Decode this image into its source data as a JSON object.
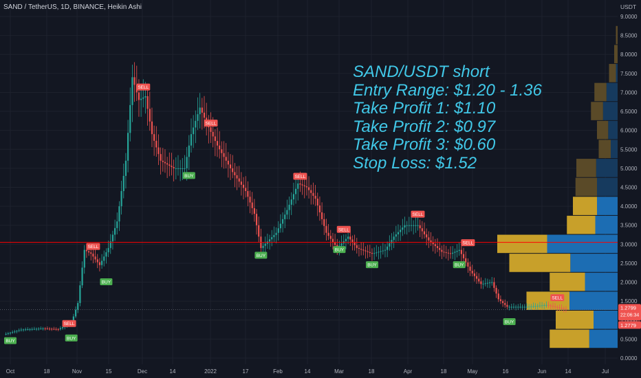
{
  "header": {
    "title": "SAND / TetherUS, 1D, BINANCE, Heikin Ashi"
  },
  "annotation": {
    "lines": [
      "SAND/USDT short",
      "Entry Range: $1.20 - 1.36",
      "Take Profit 1: $1.10",
      "Take Profit 2: $0.97",
      "Take Profit 3: $0.60",
      "Stop Loss: $1.52"
    ],
    "color": "#41c8e8"
  },
  "colors": {
    "background": "#131722",
    "grid": "#1e222d",
    "up": "#26a69a",
    "down": "#ef5350",
    "text": "#b2b5be",
    "level_line": "#ff0000",
    "price_line": "#787b86",
    "vp_blue": "#1c6db3",
    "vp_blue_dark": "#163a5e",
    "vp_gold": "#c8a02a",
    "vp_gold_dark": "#5a4a28",
    "buy_label": "#4caf50",
    "sell_label": "#ef5350"
  },
  "chart_data": {
    "type": "candlestick",
    "title": "SAND / TetherUS, 1D, BINANCE, Heikin Ashi",
    "currency_label": "USDT",
    "y_ticks": [
      "9.0000",
      "8.5000",
      "8.0000",
      "7.5000",
      "7.0000",
      "6.5000",
      "6.0000",
      "5.5000",
      "5.0000",
      "4.5000",
      "4.0000",
      "3.5000",
      "3.0000",
      "2.5000",
      "2.0000",
      "1.5000",
      "1.0000",
      "0.5000",
      "0.0000"
    ],
    "x_ticks": [
      "Oct",
      "18",
      "Nov",
      "15",
      "Dec",
      "14",
      "2022",
      "17",
      "Feb",
      "14",
      "Mar",
      "18",
      "Apr",
      "18",
      "May",
      "16",
      "Jun",
      "14",
      "Jul"
    ],
    "ylim": [
      0,
      9.3
    ],
    "grid": true,
    "horizontal_level": 3.05,
    "current_price": {
      "value": 1.2799,
      "label": "1.2799",
      "countdown": "22:06:34",
      "low_label": "1.2779"
    },
    "price_path": [
      [
        "2021-09-27",
        0.62
      ],
      [
        "2021-10-05",
        0.75
      ],
      [
        "2021-10-15",
        0.78
      ],
      [
        "2021-10-22",
        0.76
      ],
      [
        "2021-10-28",
        0.92
      ],
      [
        "2021-10-31",
        1.45
      ],
      [
        "2021-11-03",
        2.85
      ],
      [
        "2021-11-06",
        2.75
      ],
      [
        "2021-11-10",
        2.45
      ],
      [
        "2021-11-14",
        2.9
      ],
      [
        "2021-11-18",
        3.6
      ],
      [
        "2021-11-22",
        5.2
      ],
      [
        "2021-11-25",
        7.4
      ],
      [
        "2021-11-28",
        6.8
      ],
      [
        "2021-12-01",
        6.9
      ],
      [
        "2021-12-04",
        5.9
      ],
      [
        "2021-12-08",
        5.2
      ],
      [
        "2021-12-14",
        5.0
      ],
      [
        "2021-12-19",
        5.0
      ],
      [
        "2021-12-22",
        5.9
      ],
      [
        "2021-12-26",
        6.6
      ],
      [
        "2021-12-29",
        6.2
      ],
      [
        "2022-01-03",
        5.6
      ],
      [
        "2022-01-10",
        4.9
      ],
      [
        "2022-01-16",
        4.4
      ],
      [
        "2022-01-20",
        3.8
      ],
      [
        "2022-01-23",
        2.9
      ],
      [
        "2022-01-30",
        3.3
      ],
      [
        "2022-02-04",
        3.9
      ],
      [
        "2022-02-09",
        4.6
      ],
      [
        "2022-02-13",
        4.5
      ],
      [
        "2022-02-17",
        4.2
      ],
      [
        "2022-02-22",
        3.3
      ],
      [
        "2022-02-27",
        2.9
      ],
      [
        "2022-03-04",
        3.2
      ],
      [
        "2022-03-08",
        2.9
      ],
      [
        "2022-03-15",
        2.75
      ],
      [
        "2022-03-21",
        2.85
      ],
      [
        "2022-03-25",
        3.2
      ],
      [
        "2022-03-30",
        3.5
      ],
      [
        "2022-04-05",
        3.5
      ],
      [
        "2022-04-10",
        3.1
      ],
      [
        "2022-04-16",
        2.8
      ],
      [
        "2022-04-20",
        2.75
      ],
      [
        "2022-04-24",
        2.85
      ],
      [
        "2022-04-29",
        2.3
      ],
      [
        "2022-05-04",
        1.95
      ],
      [
        "2022-05-09",
        2.0
      ],
      [
        "2022-05-12",
        1.55
      ],
      [
        "2022-05-16",
        1.35
      ],
      [
        "2022-05-25",
        1.35
      ],
      [
        "2022-06-03",
        1.4
      ],
      [
        "2022-06-12",
        1.28
      ]
    ],
    "signals": [
      {
        "date": "2021-09-30",
        "type": "BUY",
        "price": 0.55
      },
      {
        "date": "2021-10-27",
        "type": "SELL",
        "price": 0.82
      },
      {
        "date": "2021-10-28",
        "type": "BUY",
        "price": 0.62
      },
      {
        "date": "2021-11-07",
        "type": "SELL",
        "price": 2.85
      },
      {
        "date": "2021-11-13",
        "type": "BUY",
        "price": 2.1
      },
      {
        "date": "2021-11-30",
        "type": "SELL",
        "price": 7.05
      },
      {
        "date": "2021-12-21",
        "type": "BUY",
        "price": 4.9
      },
      {
        "date": "2021-12-31",
        "type": "SELL",
        "price": 6.1
      },
      {
        "date": "2022-01-23",
        "type": "BUY",
        "price": 2.8
      },
      {
        "date": "2022-02-10",
        "type": "SELL",
        "price": 4.7
      },
      {
        "date": "2022-02-28",
        "type": "BUY",
        "price": 2.95
      },
      {
        "date": "2022-03-02",
        "type": "SELL",
        "price": 3.3
      },
      {
        "date": "2022-03-15",
        "type": "BUY",
        "price": 2.55
      },
      {
        "date": "2022-04-05",
        "type": "SELL",
        "price": 3.7
      },
      {
        "date": "2022-04-24",
        "type": "BUY",
        "price": 2.55
      },
      {
        "date": "2022-04-28",
        "type": "SELL",
        "price": 2.95
      },
      {
        "date": "2022-05-17",
        "type": "BUY",
        "price": 1.05
      },
      {
        "date": "2022-06-08",
        "type": "SELL",
        "price": 1.5
      }
    ],
    "volume_profile": [
      {
        "price": 8.5,
        "up": 0.02,
        "down": 0.0
      },
      {
        "price": 8.0,
        "up": 0.04,
        "down": 0.0
      },
      {
        "price": 7.5,
        "up": 0.08,
        "down": 0.02
      },
      {
        "price": 7.0,
        "up": 0.14,
        "down": 0.13
      },
      {
        "price": 6.5,
        "up": 0.14,
        "down": 0.17
      },
      {
        "price": 6.0,
        "up": 0.13,
        "down": 0.11
      },
      {
        "price": 5.5,
        "up": 0.14,
        "down": 0.08
      },
      {
        "price": 5.0,
        "up": 0.23,
        "down": 0.25
      },
      {
        "price": 4.5,
        "up": 0.25,
        "down": 0.24
      },
      {
        "price": 4.0,
        "up": 0.28,
        "down": 0.24
      },
      {
        "price": 3.5,
        "up": 0.33,
        "down": 0.26
      },
      {
        "price": 3.0,
        "up": 0.58,
        "down": 0.82
      },
      {
        "price": 2.5,
        "up": 0.71,
        "down": 0.55
      },
      {
        "price": 2.0,
        "up": 0.41,
        "down": 0.38
      },
      {
        "price": 1.5,
        "up": 0.5,
        "down": 0.56
      },
      {
        "price": 1.0,
        "up": 0.44,
        "down": 0.28
      },
      {
        "price": 0.5,
        "up": 0.46,
        "down": 0.33
      }
    ]
  }
}
